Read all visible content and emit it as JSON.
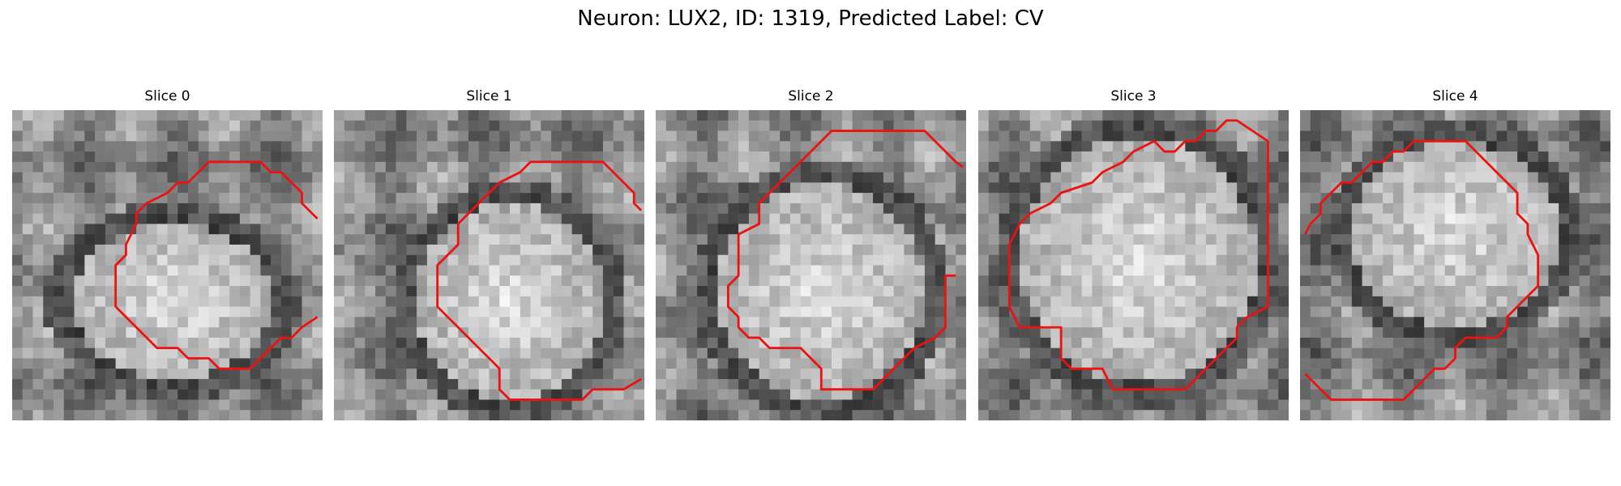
{
  "figure": {
    "title": "Neuron: LUX2, ID: 1319, Predicted Label: CV"
  },
  "panels": [
    {
      "title": "Slice 0"
    },
    {
      "title": "Slice 1"
    },
    {
      "title": "Slice 2"
    },
    {
      "title": "Slice 3"
    },
    {
      "title": "Slice 4"
    }
  ],
  "colors": {
    "contour": "#ee1111",
    "background": "#ffffff"
  }
}
